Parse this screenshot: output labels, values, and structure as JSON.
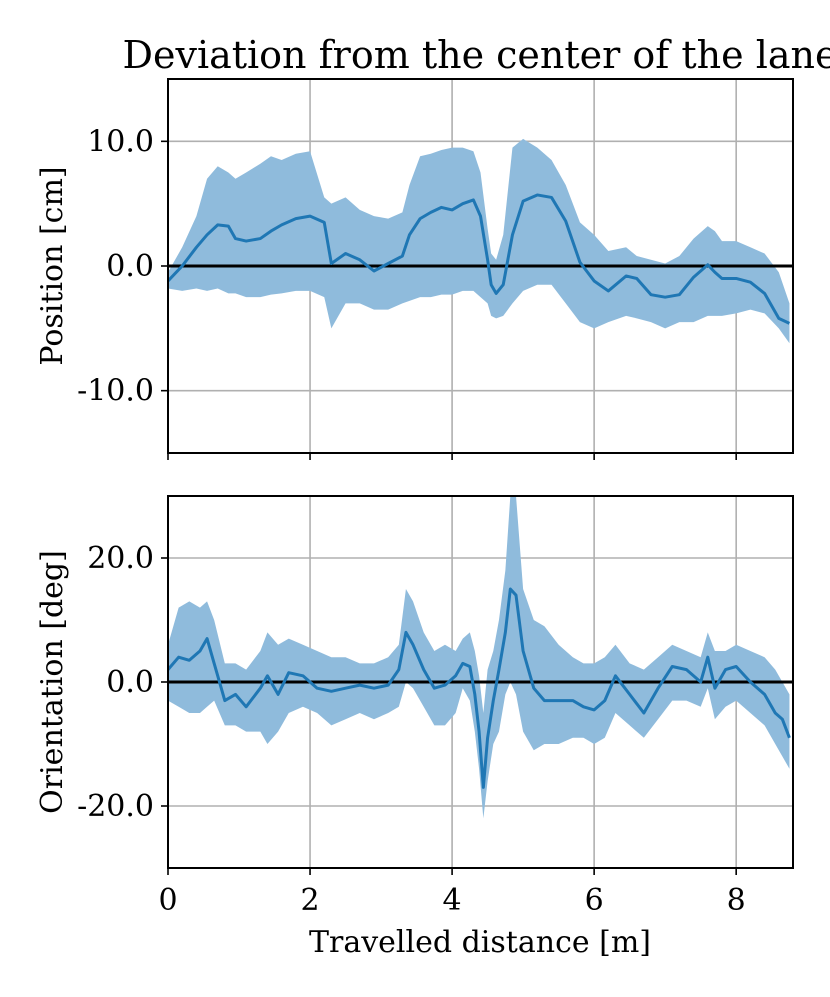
{
  "title": "Deviation from the center of the lane",
  "xlabel": "Travelled distance [m]",
  "colors": {
    "line": "#1f77b4",
    "band": "#8fbbdc",
    "zero": "#000000",
    "grid": "#b0b0b0"
  },
  "chart_data": [
    {
      "type": "line",
      "name": "position",
      "title": "Deviation from the center of the lane",
      "ylabel": "Position [cm]",
      "xlim": [
        0,
        8.8
      ],
      "ylim": [
        -15,
        15
      ],
      "xticks": [
        0,
        2,
        4,
        6,
        8
      ],
      "yticks": [
        -10,
        0,
        10
      ],
      "ytick_labels": [
        "-10.0",
        "0.0",
        "10.0"
      ],
      "grid": true,
      "reference_line": 0,
      "x": [
        0,
        0.2,
        0.4,
        0.55,
        0.7,
        0.85,
        0.95,
        1.1,
        1.3,
        1.45,
        1.6,
        1.8,
        2.0,
        2.2,
        2.3,
        2.5,
        2.7,
        2.9,
        3.1,
        3.3,
        3.4,
        3.55,
        3.7,
        3.85,
        4.0,
        4.15,
        4.3,
        4.4,
        4.5,
        4.55,
        4.62,
        4.72,
        4.85,
        5.0,
        5.2,
        5.4,
        5.6,
        5.8,
        6.0,
        6.2,
        6.45,
        6.6,
        6.8,
        7.0,
        7.2,
        7.4,
        7.6,
        7.7,
        7.8,
        8.0,
        8.2,
        8.4,
        8.6,
        8.75
      ],
      "y": [
        -1.2,
        0,
        1.5,
        2.5,
        3.3,
        3.2,
        2.2,
        2,
        2.2,
        2.8,
        3.3,
        3.8,
        4,
        3.5,
        0.2,
        1,
        0.5,
        -0.4,
        0.2,
        0.8,
        2.5,
        3.8,
        4.3,
        4.7,
        4.5,
        5,
        5.3,
        4,
        0.5,
        -1.5,
        -2.2,
        -1.5,
        2.5,
        5.2,
        5.7,
        5.5,
        3.6,
        0.3,
        -1.2,
        -2,
        -0.8,
        -1,
        -2.3,
        -2.5,
        -2.3,
        -0.9,
        0.1,
        -0.5,
        -1,
        -1,
        -1.3,
        -2.2,
        -4.2,
        -4.6
      ],
      "upper": [
        -0.5,
        1.5,
        4,
        7,
        8,
        7.5,
        7,
        7.5,
        8.2,
        8.8,
        8.5,
        9,
        9.2,
        5.5,
        5,
        5.5,
        4.5,
        4,
        3.8,
        4.3,
        6.5,
        8.8,
        9,
        9.3,
        9.5,
        9.5,
        9.2,
        7.5,
        3,
        1,
        0.5,
        2.5,
        9.5,
        10.2,
        9.5,
        8.5,
        6.5,
        3.5,
        2.5,
        1.2,
        1.5,
        0.8,
        0.5,
        0.2,
        0.8,
        2.2,
        3.2,
        2.8,
        2,
        2,
        1.5,
        1,
        -0.5,
        -3
      ],
      "lower": [
        -1.8,
        -2,
        -1.8,
        -2,
        -1.8,
        -2.2,
        -2.2,
        -2.5,
        -2.5,
        -2.3,
        -2.2,
        -2,
        -2,
        -2.5,
        -5,
        -3,
        -3,
        -3.5,
        -3.5,
        -3,
        -2.8,
        -2.5,
        -2.5,
        -2.3,
        -2.3,
        -2,
        -2,
        -2.5,
        -3,
        -4,
        -4.2,
        -4,
        -3,
        -2,
        -1.5,
        -1.5,
        -3,
        -4.5,
        -5,
        -4.5,
        -4,
        -4.2,
        -4.5,
        -5,
        -4.5,
        -4.5,
        -4,
        -4,
        -4,
        -3.8,
        -3.5,
        -3.8,
        -5,
        -6.2
      ]
    },
    {
      "type": "line",
      "name": "orientation",
      "ylabel": "Orientation [deg]",
      "xlabel": "Travelled distance [m]",
      "xlim": [
        0,
        8.8
      ],
      "ylim": [
        -30,
        30
      ],
      "xticks": [
        0,
        2,
        4,
        6,
        8
      ],
      "xtick_labels": [
        "0",
        "2",
        "4",
        "6",
        "8"
      ],
      "yticks": [
        -20,
        0,
        20
      ],
      "ytick_labels": [
        "-20.0",
        "0.0",
        "20.0"
      ],
      "grid": true,
      "reference_line": 0,
      "x": [
        0,
        0.15,
        0.3,
        0.45,
        0.55,
        0.65,
        0.8,
        0.95,
        1.1,
        1.3,
        1.4,
        1.55,
        1.7,
        1.9,
        2.1,
        2.3,
        2.5,
        2.7,
        2.9,
        3.1,
        3.25,
        3.35,
        3.45,
        3.6,
        3.75,
        3.9,
        4.05,
        4.15,
        4.25,
        4.32,
        4.38,
        4.44,
        4.5,
        4.58,
        4.66,
        4.75,
        4.82,
        4.9,
        5.0,
        5.15,
        5.3,
        5.5,
        5.7,
        5.85,
        6.0,
        6.15,
        6.3,
        6.5,
        6.7,
        6.9,
        7.1,
        7.3,
        7.5,
        7.6,
        7.7,
        7.85,
        8.0,
        8.2,
        8.4,
        8.55,
        8.65,
        8.75
      ],
      "y": [
        2,
        4,
        3.5,
        5,
        7,
        3,
        -3,
        -2,
        -4,
        -1,
        1,
        -2,
        1.5,
        1,
        -1,
        -1.5,
        -1,
        -0.5,
        -1,
        -0.5,
        2,
        8,
        6,
        2,
        -1,
        -0.5,
        1,
        3,
        2.5,
        -2,
        -8,
        -17,
        -9,
        -3,
        2,
        8,
        15,
        14,
        5,
        -1,
        -3,
        -3,
        -3,
        -4,
        -4.5,
        -3,
        1,
        -2,
        -5,
        -1,
        2.5,
        2,
        0,
        4,
        -1,
        2,
        2.5,
        0,
        -2,
        -5,
        -6,
        -9
      ],
      "upper": [
        6,
        12,
        13,
        12,
        13,
        10,
        3,
        3,
        2,
        5,
        8,
        6,
        7,
        6,
        5,
        4,
        4,
        3,
        3,
        4,
        6,
        15,
        13,
        8,
        5,
        6,
        5,
        7,
        8,
        5,
        1,
        -5,
        2,
        5,
        10,
        18,
        30,
        30,
        15,
        10,
        9,
        6,
        4,
        3,
        3,
        4,
        6,
        3,
        2,
        4,
        6,
        5,
        4,
        8,
        5,
        5,
        6,
        5,
        4,
        2,
        0,
        -2
      ],
      "lower": [
        -3,
        -4,
        -5,
        -5,
        -4,
        -3,
        -7,
        -7,
        -8,
        -8,
        -10,
        -8,
        -5,
        -4,
        -5,
        -7,
        -6,
        -5,
        -6,
        -5,
        -4,
        0,
        -1,
        -4,
        -7,
        -7,
        -5,
        -1,
        -3,
        -8,
        -14,
        -22,
        -16,
        -10,
        -8,
        -2,
        0,
        -2,
        -8,
        -11,
        -10,
        -10,
        -9,
        -9,
        -10,
        -9,
        -5,
        -7,
        -9,
        -6,
        -3,
        -3,
        -4,
        -1,
        -6,
        -4,
        -3,
        -5,
        -7,
        -10,
        -12,
        -14
      ]
    }
  ]
}
